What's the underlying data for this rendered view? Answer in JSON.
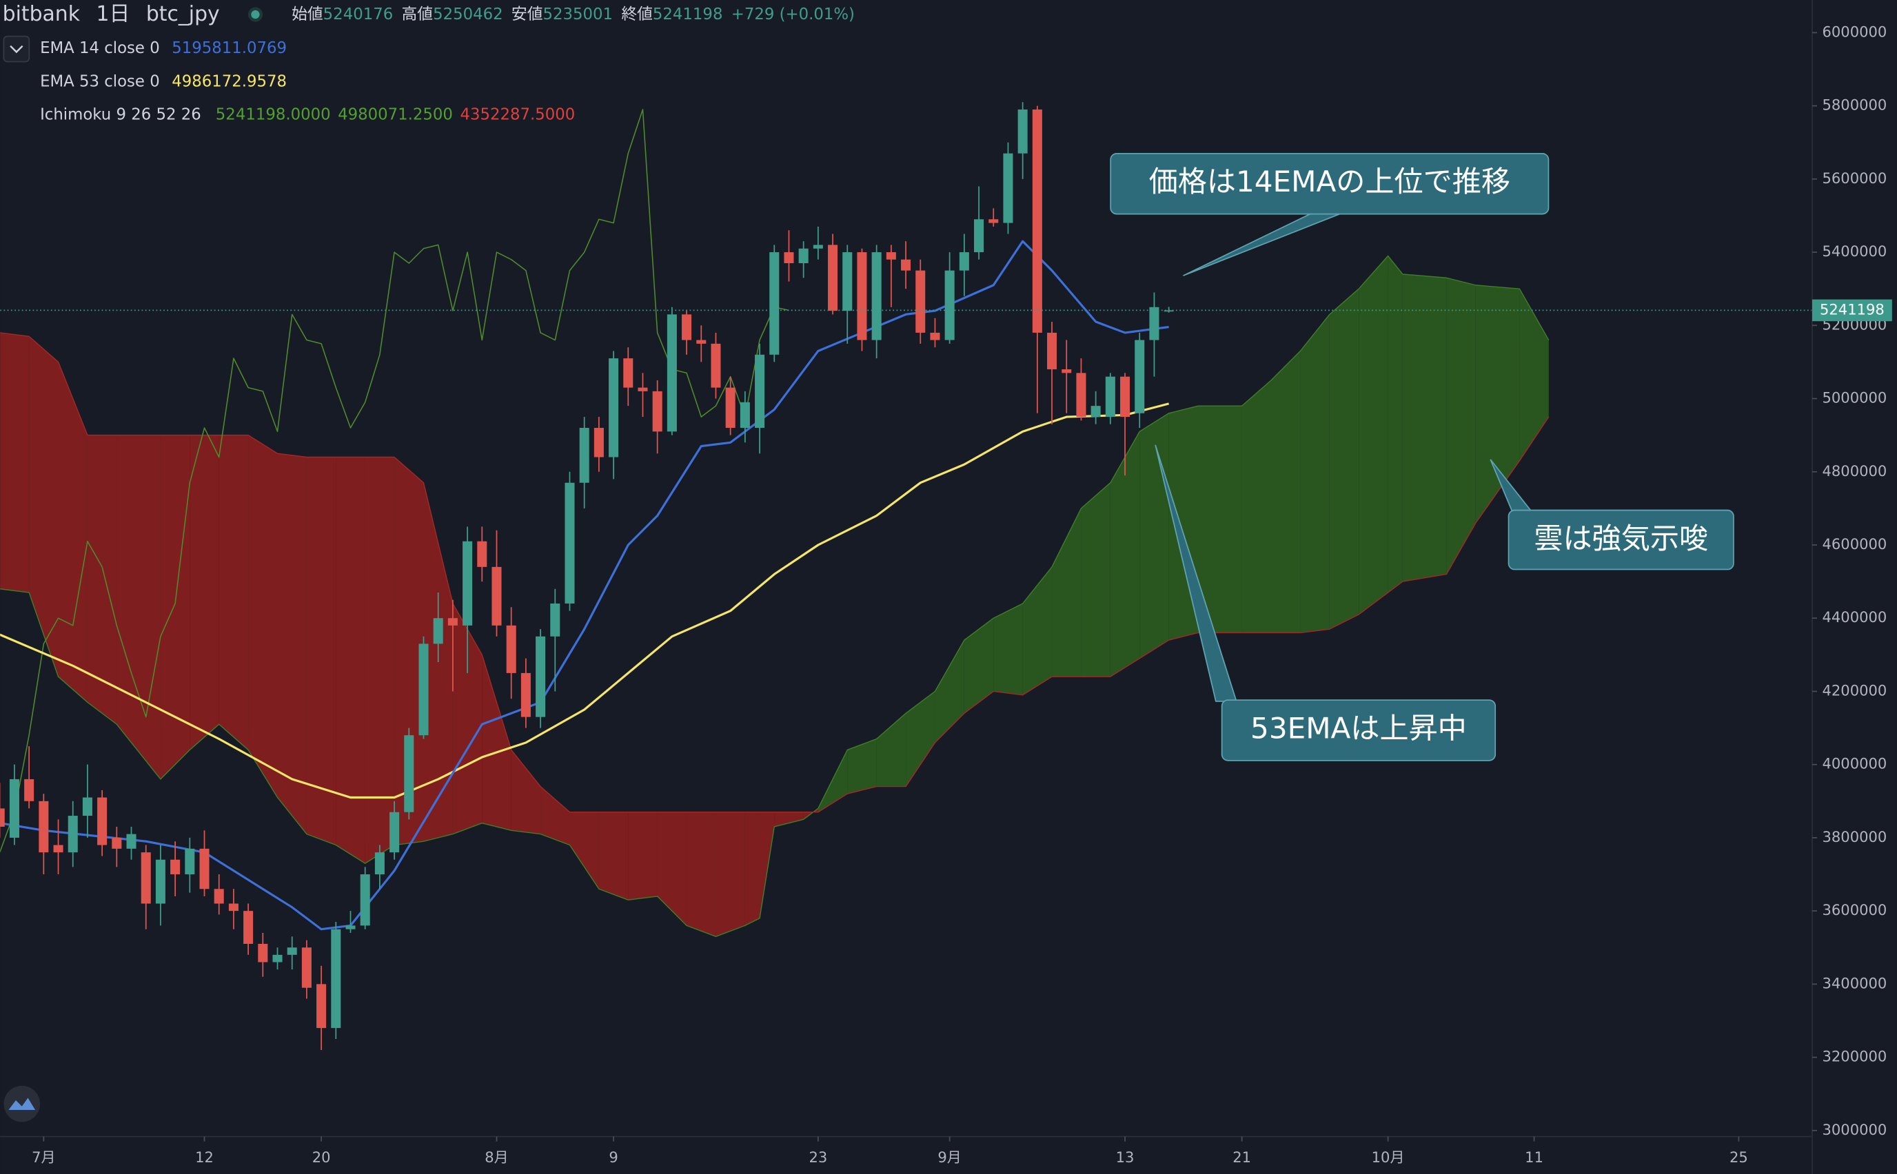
{
  "header": {
    "symbol": "bitbank",
    "interval": "1日",
    "pair": "btc_jpy",
    "ohlc": [
      {
        "label": "始値",
        "value": 5240176
      },
      {
        "label": "高値",
        "value": 5250462
      },
      {
        "label": "安値",
        "value": 5235001
      },
      {
        "label": "終値",
        "value": 5241198
      }
    ],
    "change": "+729 (+0.01%)"
  },
  "chart_data": {
    "type": "candlestick",
    "xlim": [
      -2.98,
      121.03
    ],
    "xticks": [
      {
        "value": 0,
        "label": "7月"
      },
      {
        "value": 11,
        "label": "12"
      },
      {
        "value": 19,
        "label": "20"
      },
      {
        "value": 31,
        "label": "8月"
      },
      {
        "value": 39,
        "label": "9"
      },
      {
        "value": 53,
        "label": "23"
      },
      {
        "value": 62,
        "label": "9月"
      },
      {
        "value": 74,
        "label": "13"
      },
      {
        "value": 82,
        "label": "21"
      },
      {
        "value": 92,
        "label": "10月"
      },
      {
        "value": 102,
        "label": "11"
      },
      {
        "value": 116,
        "label": "25"
      }
    ],
    "ylim": [
      2983500,
      6089200
    ],
    "yticks": [
      3000000,
      3200000,
      3400000,
      3600000,
      3800000,
      4000000,
      4200000,
      4400000,
      4600000,
      4800000,
      5000000,
      5200000,
      5400000,
      5600000,
      5800000,
      6000000
    ],
    "last_price": 5241198,
    "last_price_color": "#3b9a8c",
    "candles": {
      "x": [
        -3,
        -2,
        -1,
        0,
        1,
        2,
        3,
        4,
        5,
        6,
        7,
        8,
        9,
        10,
        11,
        12,
        13,
        14,
        15,
        16,
        17,
        18,
        19,
        20,
        21,
        22,
        23,
        24,
        25,
        26,
        27,
        28,
        29,
        30,
        31,
        32,
        33,
        34,
        35,
        36,
        37,
        38,
        39,
        40,
        41,
        42,
        43,
        44,
        45,
        46,
        47,
        48,
        49,
        50,
        51,
        52,
        53,
        54,
        55,
        56,
        57,
        58,
        59,
        60,
        61,
        62,
        63,
        64,
        65,
        66,
        67,
        68,
        69,
        70,
        71,
        72,
        73,
        74,
        75,
        76,
        77
      ],
      "open": [
        3880000,
        3800000,
        3960000,
        3900000,
        3780000,
        3760000,
        3860000,
        3910000,
        3800000,
        3770000,
        3760000,
        3620000,
        3740000,
        3700000,
        3770000,
        3660000,
        3620000,
        3600000,
        3510000,
        3460000,
        3480000,
        3500000,
        3400000,
        3280000,
        3550000,
        3560000,
        3700000,
        3760000,
        3870000,
        4080000,
        4330000,
        4400000,
        4380000,
        4610000,
        4540000,
        4380000,
        4250000,
        4130000,
        4350000,
        4440000,
        4770000,
        4920000,
        4840000,
        5110000,
        5030000,
        5020000,
        4910000,
        5230000,
        5160000,
        5150000,
        5030000,
        4920000,
        4920000,
        5120000,
        5400000,
        5370000,
        5410000,
        5420000,
        5240000,
        5400000,
        5160000,
        5400000,
        5380000,
        5350000,
        5180000,
        5160000,
        5350000,
        5400000,
        5490000,
        5480000,
        5670000,
        5790000,
        5180000,
        5080000,
        5070000,
        4950000,
        4950000,
        5060000,
        4960000,
        5160000,
        5240176
      ],
      "high": [
        3950000,
        4000000,
        4050000,
        3920000,
        3850000,
        3900000,
        4000000,
        3930000,
        3830000,
        3830000,
        3780000,
        3780000,
        3790000,
        3800000,
        3820000,
        3700000,
        3660000,
        3620000,
        3540000,
        3500000,
        3530000,
        3520000,
        3450000,
        3570000,
        3600000,
        3720000,
        3780000,
        3900000,
        4100000,
        4350000,
        4470000,
        4450000,
        4650000,
        4650000,
        4640000,
        4430000,
        4290000,
        4370000,
        4480000,
        4800000,
        4950000,
        4950000,
        5130000,
        5140000,
        5070000,
        5050000,
        5250000,
        5240000,
        5200000,
        5180000,
        5060000,
        5020000,
        5150000,
        5420000,
        5460000,
        5430000,
        5470000,
        5450000,
        5420000,
        5410000,
        5420000,
        5420000,
        5430000,
        5380000,
        5220000,
        5400000,
        5450000,
        5580000,
        5520000,
        5700000,
        5810000,
        5800000,
        5210000,
        5160000,
        5110000,
        5020000,
        5070000,
        5070000,
        5180000,
        5290000,
        5250462
      ],
      "low": [
        3800000,
        3780000,
        3880000,
        3700000,
        3700000,
        3720000,
        3800000,
        3750000,
        3720000,
        3740000,
        3550000,
        3560000,
        3640000,
        3650000,
        3640000,
        3590000,
        3550000,
        3480000,
        3420000,
        3440000,
        3440000,
        3360000,
        3220000,
        3250000,
        3540000,
        3550000,
        3660000,
        3740000,
        3850000,
        4070000,
        4280000,
        4200000,
        4250000,
        4500000,
        4350000,
        4180000,
        4100000,
        4100000,
        4200000,
        4420000,
        4700000,
        4800000,
        4780000,
        4980000,
        4950000,
        4850000,
        4900000,
        5120000,
        5100000,
        5000000,
        4900000,
        4880000,
        4850000,
        5100000,
        5320000,
        5330000,
        5380000,
        5230000,
        5150000,
        5130000,
        5110000,
        5250000,
        5300000,
        5150000,
        5140000,
        5150000,
        5280000,
        5380000,
        5470000,
        5450000,
        5600000,
        4960000,
        4930000,
        4960000,
        4940000,
        4930000,
        4930000,
        4790000,
        4920000,
        5060000,
        5235001
      ],
      "close": [
        3830000,
        3960000,
        3900000,
        3760000,
        3760000,
        3860000,
        3910000,
        3780000,
        3770000,
        3810000,
        3620000,
        3740000,
        3700000,
        3770000,
        3660000,
        3620000,
        3600000,
        3510000,
        3460000,
        3480000,
        3500000,
        3390000,
        3280000,
        3550000,
        3560000,
        3700000,
        3760000,
        3870000,
        4080000,
        4330000,
        4400000,
        4380000,
        4610000,
        4540000,
        4380000,
        4250000,
        4130000,
        4350000,
        4440000,
        4770000,
        4920000,
        4840000,
        5110000,
        5030000,
        5020000,
        4910000,
        5230000,
        5160000,
        5150000,
        5030000,
        4920000,
        4990000,
        5120000,
        5400000,
        5370000,
        5410000,
        5420000,
        5240000,
        5400000,
        5160000,
        5400000,
        5380000,
        5350000,
        5180000,
        5160000,
        5350000,
        5400000,
        5490000,
        5480000,
        5670000,
        5790000,
        5180000,
        5080000,
        5070000,
        4950000,
        4980000,
        5060000,
        4950000,
        5160000,
        5250000,
        5241198
      ],
      "up_color": "#3f9d8e",
      "down_color": "#e1554f"
    },
    "series": [
      {
        "name": "EMA 14 close 0",
        "type": "line",
        "color": "#3d70d8",
        "x": [
          -3,
          0,
          7,
          11,
          17,
          19,
          21,
          24,
          27,
          30,
          34,
          37,
          40,
          42,
          45,
          47,
          50,
          53,
          56,
          59,
          61,
          65,
          67,
          69,
          72,
          74,
          77
        ],
        "values": [
          3840000,
          3820000,
          3790000,
          3760000,
          3610000,
          3550000,
          3560000,
          3710000,
          3910000,
          4110000,
          4170000,
          4370000,
          4600000,
          4680000,
          4870000,
          4880000,
          4970000,
          5130000,
          5180000,
          5230000,
          5240000,
          5310000,
          5430000,
          5350000,
          5210000,
          5180000,
          5195811.0769
        ]
      },
      {
        "name": "EMA 53 close 0",
        "type": "line",
        "color": "#f5e66b",
        "x": [
          -3,
          2,
          7,
          12,
          17,
          21,
          24,
          27,
          30,
          33,
          37,
          40,
          43,
          47,
          50,
          53,
          57,
          60,
          63,
          67,
          70,
          74,
          77
        ],
        "values": [
          4355000,
          4270000,
          4170000,
          4070000,
          3960000,
          3910000,
          3910000,
          3960000,
          4020000,
          4060000,
          4150000,
          4250000,
          4350000,
          4420000,
          4520000,
          4600000,
          4680000,
          4770000,
          4820000,
          4910000,
          4950000,
          4955000,
          4986172.9578
        ]
      }
    ],
    "ichimoku": {
      "name": "Ichimoku 9 26 52 26",
      "value_labels": [
        "5241198.0000",
        "4980071.2500",
        "4352287.5000"
      ],
      "label_colors": [
        "#52a030",
        "#52a030",
        "#e0413a"
      ],
      "lagging": {
        "color": "#4f8a2b",
        "x": [
          -3,
          -2,
          -1,
          0,
          1,
          2,
          3,
          4,
          5,
          6,
          7,
          8,
          9,
          10,
          11,
          12,
          13,
          14,
          15,
          16,
          17,
          18,
          19,
          20,
          21,
          22,
          23,
          24,
          25,
          26,
          27,
          28,
          29,
          30,
          31,
          32,
          33,
          34,
          35,
          36,
          37,
          38,
          39,
          40,
          41,
          42,
          43,
          44,
          45,
          46,
          47,
          48,
          49,
          50,
          51
        ],
        "values": [
          3760000,
          3870000,
          4080000,
          4330000,
          4400000,
          4380000,
          4610000,
          4540000,
          4380000,
          4250000,
          4130000,
          4350000,
          4440000,
          4770000,
          4920000,
          4840000,
          5110000,
          5030000,
          5020000,
          4910000,
          5230000,
          5160000,
          5150000,
          5030000,
          4920000,
          4990000,
          5120000,
          5400000,
          5370000,
          5410000,
          5420000,
          5240000,
          5400000,
          5160000,
          5400000,
          5380000,
          5350000,
          5180000,
          5160000,
          5350000,
          5400000,
          5490000,
          5480000,
          5670000,
          5790000,
          5180000,
          5080000,
          5070000,
          4950000,
          4980000,
          5060000,
          4950000,
          5160000,
          5250000,
          5241198
        ]
      },
      "cloud": {
        "x": [
          -3,
          -1,
          1,
          3,
          5,
          8,
          10,
          12,
          14,
          16,
          18,
          20,
          22,
          24,
          26,
          28,
          30,
          32,
          34,
          36,
          38,
          40,
          42,
          44,
          46,
          48,
          49,
          50,
          52,
          53,
          55,
          57,
          59,
          61,
          63,
          65,
          67,
          69,
          71,
          73,
          75,
          77,
          79,
          82,
          84,
          86,
          88,
          90,
          92,
          93,
          96,
          98,
          101,
          103
        ],
        "span_a": [
          4480000,
          4470000,
          4240000,
          4170000,
          4110000,
          3960000,
          4040000,
          4110000,
          4040000,
          3910000,
          3810000,
          3780000,
          3730000,
          3780000,
          3790000,
          3810000,
          3840000,
          3820000,
          3810000,
          3780000,
          3660000,
          3630000,
          3640000,
          3560000,
          3530000,
          3560000,
          3580000,
          3830000,
          3850000,
          3880000,
          4040000,
          4070000,
          4140000,
          4200000,
          4340000,
          4400000,
          4440000,
          4540000,
          4700000,
          4770000,
          4910000,
          4960000,
          4980000,
          4980000,
          5050000,
          5130000,
          5230000,
          5300000,
          5390000,
          5340000,
          5330000,
          5310000,
          5300000,
          5160000
        ],
        "span_b": [
          5180000,
          5170000,
          5100000,
          4900000,
          4900000,
          4900000,
          4900000,
          4900000,
          4900000,
          4850000,
          4840000,
          4840000,
          4840000,
          4840000,
          4770000,
          4440000,
          4300000,
          4040000,
          3940000,
          3870000,
          3870000,
          3870000,
          3870000,
          3870000,
          3870000,
          3870000,
          3870000,
          3870000,
          3870000,
          3870000,
          3920000,
          3940000,
          3940000,
          4060000,
          4140000,
          4200000,
          4190000,
          4240000,
          4240000,
          4240000,
          4290000,
          4340000,
          4360000,
          4360000,
          4360000,
          4360000,
          4370000,
          4410000,
          4470000,
          4500000,
          4520000,
          4660000,
          4830000,
          4950000
        ],
        "span_a_color": "#3f7d2a",
        "span_b_color": "#a02a28",
        "up_color": "#2b5c1f",
        "down_color": "#8b1f1e"
      }
    },
    "annotations": [
      "価格は14EMAの上位で推移",
      "雲は強気示唆",
      "53EMAは上昇中"
    ]
  }
}
